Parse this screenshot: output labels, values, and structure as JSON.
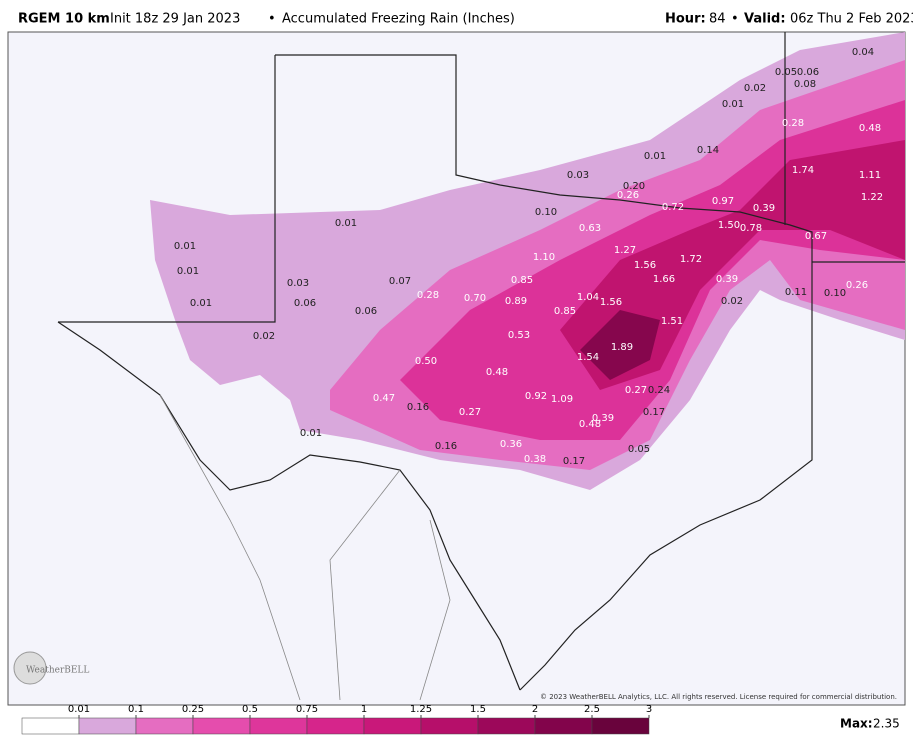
{
  "header": {
    "model": "RGEM 10 km",
    "init": "Init 18z 29 Jan 2023",
    "separator": "•",
    "product": "Accumulated Freezing Rain (Inches)",
    "hour_label": "Hour:",
    "hour": "84",
    "valid_label": "Valid:",
    "valid": "06z Thu 2 Feb 2023"
  },
  "map": {
    "labels": [
      "0.04",
      "0.05",
      "0.06",
      "0.08",
      "0.02",
      "0.01",
      "0.28",
      "0.48",
      "0.14",
      "0.01",
      "0.03",
      "1.74",
      "1.11",
      "0.20",
      "0.26",
      "0.72",
      "0.97",
      "0.39",
      "1.22",
      "0.10",
      "0.01",
      "0.63",
      "1.50",
      "0.78",
      "0.67",
      "0.01",
      "1.27",
      "1.10",
      "1.56",
      "1.72",
      "0.01",
      "0.03",
      "0.07",
      "0.85",
      "1.66",
      "0.39",
      "0.11",
      "0.10",
      "0.26",
      "0.01",
      "0.06",
      "0.28",
      "0.70",
      "0.89",
      "1.04",
      "1.56",
      "0.02",
      "0.06",
      "0.85",
      "1.51",
      "0.02",
      "0.53",
      "1.89",
      "1.54",
      "0.50",
      "0.48",
      "0.27",
      "0.24",
      "0.47",
      "0.92",
      "1.09",
      "0.16",
      "0.27",
      "0.17",
      "0.39",
      "0.48",
      "0.01",
      "0.16",
      "0.36",
      "0.05",
      "0.38",
      "0.17"
    ],
    "copyright": "© 2023 WeatherBELL Analytics, LLC. All rights reserved. License required for commercial distribution.",
    "logo": "WeatherBELL"
  },
  "legend": {
    "ticks": [
      0.01,
      0.1,
      0.25,
      0.5,
      0.75,
      1,
      1.25,
      1.5,
      2,
      2.5,
      3
    ],
    "colors": [
      "#ffffff",
      "#d9a8dc",
      "#e56dc1",
      "#e54dad",
      "#de369b",
      "#d6258b",
      "#c9187a",
      "#b60f6a",
      "#9c085a",
      "#82044b",
      "#69033c"
    ],
    "max_label": "Max:",
    "max": "2.35"
  }
}
